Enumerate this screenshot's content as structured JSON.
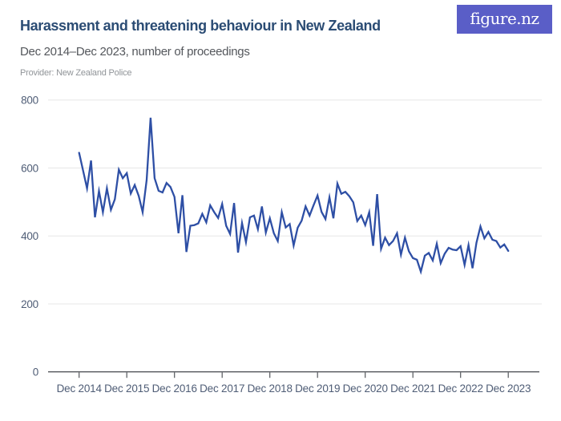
{
  "header": {
    "title": "Harassment and threatening behaviour in New Zealand",
    "subtitle": "Dec 2014–Dec 2023, number of proceedings",
    "provider": "Provider: New Zealand Police"
  },
  "logo": {
    "text": "figure.nz"
  },
  "colors": {
    "line": "#2e4fa5",
    "grid": "#e7e7e7",
    "axis": "#54575c",
    "tick_label": "#4f5d76",
    "title": "#2b4c74",
    "subtitle": "#54575c",
    "provider": "#909498",
    "logo_bg": "#5a5ec7",
    "logo_text": "#ffffff"
  },
  "chart_data": {
    "type": "line",
    "title": "Harassment and threatening behaviour in New Zealand",
    "subtitle": "Dec 2014–Dec 2023, number of proceedings",
    "ylabel": "number of proceedings",
    "xlabel": "",
    "x_interval": "monthly",
    "x_start": "Dec 2014",
    "x_end": "Dec 2023",
    "ylim": [
      0,
      800
    ],
    "y_ticks": [
      0,
      200,
      400,
      600,
      800
    ],
    "grid": "horizontal",
    "legend": "none",
    "x_tick_labels": [
      "Dec 2014",
      "Dec 2015",
      "Dec 2016",
      "Dec 2017",
      "Dec 2018",
      "Dec 2019",
      "Dec 2020",
      "Dec 2021",
      "Dec 2022",
      "Dec 2023"
    ],
    "x_tick_indices": [
      0,
      12,
      24,
      36,
      48,
      60,
      72,
      84,
      96,
      108
    ],
    "series": [
      {
        "name": "Number of proceedings",
        "values": [
          645,
          592,
          540,
          622,
          455,
          532,
          470,
          540,
          477,
          508,
          595,
          570,
          585,
          525,
          550,
          518,
          470,
          565,
          748,
          570,
          533,
          528,
          556,
          544,
          515,
          408,
          520,
          353,
          430,
          432,
          437,
          465,
          440,
          490,
          470,
          453,
          494,
          430,
          406,
          497,
          351,
          438,
          382,
          455,
          460,
          420,
          487,
          410,
          452,
          408,
          385,
          470,
          425,
          435,
          372,
          424,
          445,
          487,
          460,
          490,
          519,
          471,
          450,
          514,
          452,
          554,
          524,
          530,
          517,
          499,
          444,
          460,
          432,
          470,
          371,
          523,
          362,
          395,
          373,
          385,
          408,
          345,
          395,
          355,
          335,
          330,
          295,
          342,
          350,
          328,
          377,
          320,
          348,
          365,
          360,
          358,
          370,
          315,
          373,
          305,
          380,
          428,
          393,
          412,
          389,
          385,
          366,
          375,
          356
        ]
      }
    ]
  }
}
